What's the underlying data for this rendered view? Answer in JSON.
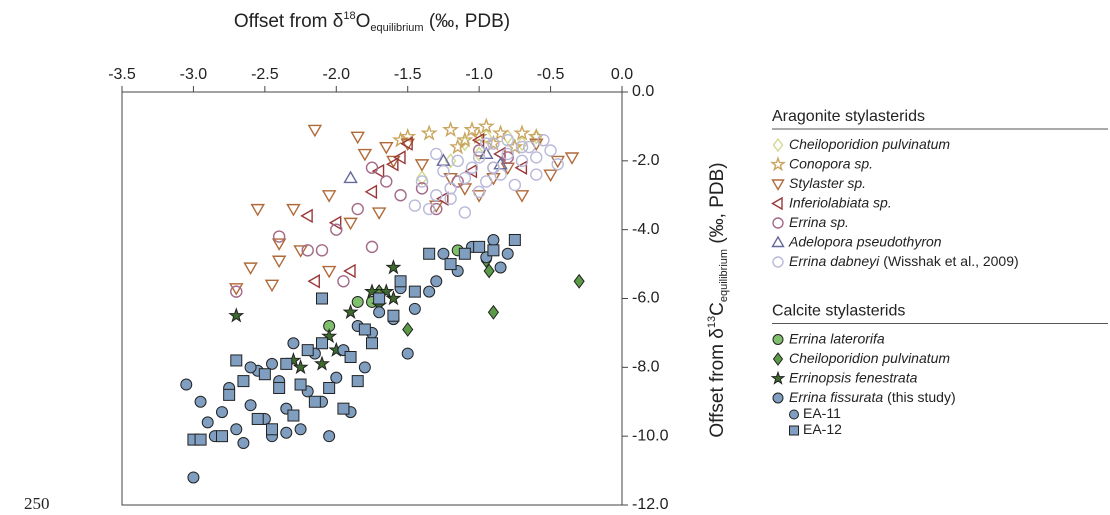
{
  "chart_data": {
    "type": "scatter",
    "page_number": "250",
    "xlabel": {
      "prefix": "Offset from δ",
      "sup": "18",
      "base": "O",
      "sub": "equilibrium",
      "suffix": " (‰, PDB)"
    },
    "ylabel": {
      "prefix": "Offset from δ",
      "sup": "13",
      "base": "C",
      "sub": "equilibrium",
      "suffix": " (‰, PDB)"
    },
    "xlim": [
      -3.5,
      0
    ],
    "ylim": [
      -12,
      0
    ],
    "xticks": [
      -3.5,
      {
        "value": -3,
        "label": "-3.0"
      },
      -2.5,
      {
        "value": -2,
        "label": "-2.0"
      },
      -1.5,
      {
        "value": -1,
        "label": "-1.0"
      },
      -0.5,
      {
        "value": 0,
        "label": "0.0"
      }
    ],
    "yticks": [
      {
        "value": 0,
        "label": "0.0"
      },
      {
        "value": -2,
        "label": "-2.0"
      },
      {
        "value": -4,
        "label": "-4.0"
      },
      {
        "value": -6,
        "label": "-6.0"
      },
      {
        "value": -8,
        "label": "-8.0"
      },
      {
        "value": -10,
        "label": "-10.0"
      },
      {
        "value": -12,
        "label": "-12.0"
      }
    ],
    "groups": [
      {
        "title": "Aragonite stylasterids",
        "series": [
          {
            "name": "Cheiloporidion pulvinatum",
            "marker": "diamond",
            "color": "#d3d88f",
            "filled": false,
            "x": [
              -1.4,
              -1.1,
              -0.95,
              -0.8,
              -0.7,
              -0.6,
              -1.2,
              -1.0
            ],
            "y": [
              -2.5,
              -1.5,
              -1.3,
              -1.3,
              -1.5,
              -1.3,
              -2.0,
              -1.8
            ]
          },
          {
            "name": "Conopora sp.",
            "marker": "star",
            "color": "#c9a55e",
            "filled": false,
            "x": [
              -1.2,
              -1.05,
              -1.0,
              -0.95,
              -1.1,
              -1.5,
              -1.35,
              -0.9,
              -0.7,
              -0.6,
              -0.85,
              -1.15,
              -1.55,
              -0.75
            ],
            "y": [
              -1.1,
              -1.1,
              -1.3,
              -1.0,
              -1.4,
              -1.3,
              -1.2,
              -1.5,
              -1.2,
              -1.3,
              -1.2,
              -1.6,
              -1.4,
              -1.6
            ]
          },
          {
            "name": "Stylaster sp.",
            "marker": "tridown",
            "color": "#b06a3a",
            "filled": false,
            "x": [
              -2.7,
              -2.6,
              -2.45,
              -2.25,
              -2.4,
              -2.3,
              -2.4,
              -2.05,
              -1.9,
              -1.8,
              -1.7,
              -1.6,
              -1.5,
              -1.4,
              -1.3,
              -1.2,
              -1.1,
              -0.9,
              -0.8,
              -0.7,
              -0.5,
              -0.45,
              -0.35,
              -0.6,
              -1.0,
              -2.15,
              -1.85,
              -1.65,
              -2.55,
              -2.05
            ],
            "y": [
              -5.7,
              -5.1,
              -5.6,
              -4.6,
              -4.9,
              -3.4,
              -4.4,
              -3.0,
              -3.8,
              -1.8,
              -3.5,
              -2.0,
              -1.5,
              -2.1,
              -3.3,
              -2.5,
              -2.8,
              -2.5,
              -2.2,
              -3.0,
              -2.4,
              -2.0,
              -1.9,
              -1.5,
              -3.0,
              -1.1,
              -1.3,
              -1.6,
              -3.4,
              -5.2
            ]
          },
          {
            "name": "Inferiolabiata sp.",
            "marker": "trileft",
            "color": "#9a3838",
            "filled": false,
            "x": [
              -2.15,
              -2.2,
              -2.0,
              -1.9,
              -1.75,
              -1.7,
              -1.6,
              -1.55,
              -1.5,
              -1.25,
              -1.05,
              -0.85,
              -0.7,
              -1.0
            ],
            "y": [
              -5.5,
              -3.6,
              -3.8,
              -5.2,
              -2.9,
              -2.3,
              -2.1,
              -1.9,
              -1.5,
              -3.1,
              -2.3,
              -1.8,
              -2.2,
              -1.4
            ]
          },
          {
            "name": "Errina sp.",
            "marker": "circle",
            "color": "#a56a88",
            "filled": false,
            "x": [
              -2.7,
              -2.4,
              -2.2,
              -2.0,
              -1.85,
              -1.75,
              -1.65,
              -1.55,
              -1.4,
              -1.3,
              -1.15,
              -1.0,
              -0.9,
              -0.8,
              -2.1,
              -1.95,
              -1.75
            ],
            "y": [
              -5.8,
              -4.2,
              -4.6,
              -4.0,
              -3.4,
              -2.2,
              -2.6,
              -3.0,
              -2.8,
              -3.4,
              -2.6,
              -1.7,
              -2.2,
              -1.9,
              -4.6,
              -5.5,
              -4.5
            ]
          },
          {
            "name": "Adelopora pseudothyron",
            "marker": "triup",
            "color": "#66679a",
            "filled": false,
            "x": [
              -1.9,
              -1.25,
              -0.95,
              -0.85
            ],
            "y": [
              -2.5,
              -2.0,
              -1.8,
              -2.1
            ]
          },
          {
            "name": "Errina dabneyi",
            "note": "(Wisshak et al., 2009)",
            "marker": "circle",
            "color": "#b9b9d9",
            "filled": false,
            "x": [
              -1.45,
              -1.4,
              -1.35,
              -1.3,
              -1.25,
              -1.2,
              -1.15,
              -1.1,
              -1.05,
              -1.0,
              -0.95,
              -0.9,
              -0.85,
              -0.8,
              -0.75,
              -0.7,
              -0.65,
              -0.6,
              -0.55,
              -0.5,
              -0.45,
              -1.2,
              -1.0,
              -0.9,
              -0.8,
              -0.7,
              -0.6,
              -1.3,
              -1.1,
              -0.95
            ],
            "y": [
              -3.3,
              -2.6,
              -3.4,
              -3.0,
              -2.3,
              -3.1,
              -2.0,
              -2.5,
              -2.2,
              -1.9,
              -2.6,
              -1.5,
              -2.4,
              -1.8,
              -2.7,
              -2.0,
              -1.6,
              -2.4,
              -1.4,
              -1.7,
              -2.1,
              -2.8,
              -2.9,
              -2.2,
              -1.4,
              -1.6,
              -1.9,
              -1.8,
              -3.5,
              -1.5
            ]
          }
        ]
      },
      {
        "title": "Calcite stylasterids",
        "series": [
          {
            "name": "Errina laterorifa",
            "marker": "circle",
            "color": "#80bf6b",
            "filled": true,
            "x": [
              -1.85,
              -1.75,
              -2.05,
              -1.15
            ],
            "y": [
              -6.1,
              -6.1,
              -6.8,
              -4.6
            ]
          },
          {
            "name": "Cheiloporidion pulvinatum",
            "marker": "diamond",
            "color": "#5b9a46",
            "filled": true,
            "x": [
              -0.3,
              -0.95,
              -0.93,
              -0.9,
              -1.5,
              -1.7
            ],
            "y": [
              -5.5,
              -4.9,
              -5.2,
              -6.4,
              -6.9,
              -5.8
            ]
          },
          {
            "name": "Errinopsis fenestrata",
            "marker": "star",
            "color": "#3d6a2d",
            "filled": true,
            "x": [
              -2.7,
              -2.3,
              -2.25,
              -2.1,
              -2.05,
              -1.9,
              -1.75,
              -1.7,
              -1.6,
              -1.6,
              -2.0,
              -1.65
            ],
            "y": [
              -6.5,
              -7.8,
              -8.0,
              -7.9,
              -7.1,
              -6.4,
              -5.8,
              -6.2,
              -5.1,
              -6.0,
              -7.5,
              -5.8
            ]
          },
          {
            "name": "Errina fissurata",
            "note": "(this study)",
            "marker": "circle",
            "color": "#7f9ec0",
            "filled": true,
            "subseries": [
              {
                "name": "EA-11",
                "marker": "circle",
                "x": [
                  -3.05,
                  -3.0,
                  -2.95,
                  -2.9,
                  -2.85,
                  -2.8,
                  -2.75,
                  -2.7,
                  -2.65,
                  -2.6,
                  -2.55,
                  -2.5,
                  -2.45,
                  -2.4,
                  -2.35,
                  -2.3,
                  -2.25,
                  -2.2,
                  -2.15,
                  -2.1,
                  -2.05,
                  -2.0,
                  -1.95,
                  -1.9,
                  -1.85,
                  -1.8,
                  -1.75,
                  -1.7,
                  -1.6,
                  -1.55,
                  -1.5,
                  -1.45,
                  -1.35,
                  -1.3,
                  -1.25,
                  -1.15,
                  -1.05,
                  -0.95,
                  -0.9,
                  -0.8,
                  -0.85,
                  -2.6,
                  -2.45,
                  -2.35
                ],
                "y": [
                  -8.5,
                  -11.2,
                  -9.0,
                  -9.6,
                  -10.0,
                  -9.3,
                  -8.6,
                  -9.8,
                  -10.2,
                  -9.1,
                  -8.1,
                  -9.5,
                  -10.0,
                  -8.4,
                  -9.2,
                  -7.3,
                  -9.8,
                  -8.7,
                  -7.6,
                  -9.0,
                  -10.0,
                  -8.3,
                  -7.5,
                  -9.3,
                  -6.8,
                  -8.0,
                  -7.0,
                  -6.4,
                  -6.6,
                  -5.7,
                  -7.6,
                  -6.3,
                  -5.8,
                  -5.5,
                  -4.7,
                  -5.2,
                  -4.5,
                  -4.8,
                  -4.3,
                  -4.7,
                  -5.1,
                  -8.0,
                  -7.9,
                  -9.9
                ]
              },
              {
                "name": "EA-12",
                "marker": "square",
                "x": [
                  -3.0,
                  -2.95,
                  -2.8,
                  -2.75,
                  -2.7,
                  -2.65,
                  -2.55,
                  -2.5,
                  -2.45,
                  -2.4,
                  -2.3,
                  -2.25,
                  -2.2,
                  -2.15,
                  -2.1,
                  -2.05,
                  -1.95,
                  -1.9,
                  -1.85,
                  -1.8,
                  -1.75,
                  -1.7,
                  -1.6,
                  -1.55,
                  -1.45,
                  -1.35,
                  -1.2,
                  -1.1,
                  -1.0,
                  -0.9,
                  -0.75,
                  -2.1,
                  -2.35
                ],
                "y": [
                  -10.1,
                  -10.1,
                  -10.0,
                  -8.8,
                  -7.8,
                  -8.4,
                  -9.5,
                  -8.2,
                  -9.8,
                  -8.6,
                  -9.4,
                  -8.5,
                  -7.5,
                  -9.0,
                  -7.3,
                  -8.6,
                  -9.2,
                  -7.7,
                  -8.4,
                  -6.9,
                  -7.3,
                  -6.0,
                  -6.5,
                  -5.5,
                  -5.8,
                  -4.7,
                  -5.0,
                  -4.7,
                  -4.5,
                  -4.6,
                  -4.3,
                  -6.0,
                  -7.9
                ]
              }
            ]
          }
        ]
      }
    ]
  }
}
